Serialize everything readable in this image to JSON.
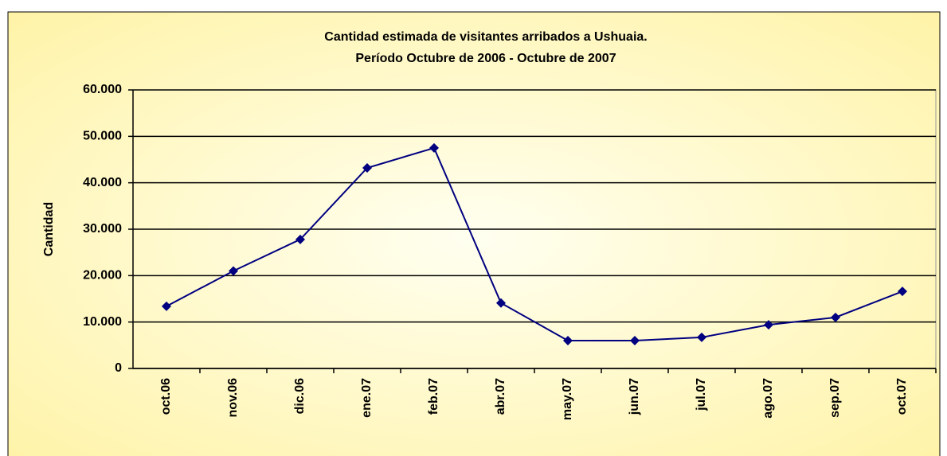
{
  "chart_data": {
    "type": "line",
    "title": "Cantidad estimada de visitantes arribados a Ushuaia.",
    "subtitle": "Período Octubre de 2006 - Octubre de 2007",
    "y_label": "Cantidad",
    "categories": [
      "oct.06",
      "nov.06",
      "dic.06",
      "ene.07",
      "feb.07",
      "abr.07",
      "may.07",
      "jun.07",
      "jul.07",
      "ago.07",
      "sep.07",
      "oct.07"
    ],
    "series": [
      {
        "name": "Cantidad",
        "color": "#000080",
        "values": [
          13400,
          21000,
          27800,
          43200,
          47500,
          14100,
          6000,
          6000,
          6700,
          9400,
          11000,
          16600
        ]
      }
    ],
    "ylim": [
      0,
      60000
    ],
    "yticks": [
      {
        "value": 0,
        "label": "0"
      },
      {
        "value": 10000,
        "label": "10.000"
      },
      {
        "value": 20000,
        "label": "20.000"
      },
      {
        "value": 30000,
        "label": "30.000"
      },
      {
        "value": 40000,
        "label": "40.000"
      },
      {
        "value": 50000,
        "label": "50.000"
      },
      {
        "value": 60000,
        "label": "60.000"
      }
    ],
    "grid": true
  }
}
